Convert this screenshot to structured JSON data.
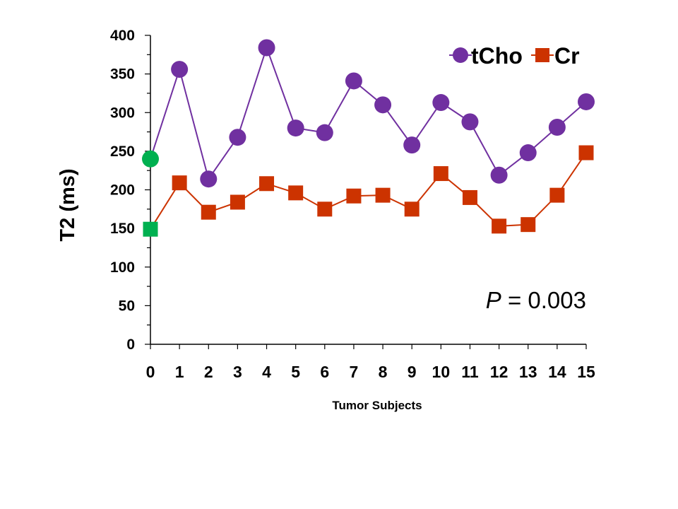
{
  "chart_data": {
    "type": "line",
    "title": "",
    "xlabel": "Tumor Subjects",
    "ylabel": "T2 (ms)",
    "x": [
      0,
      1,
      2,
      3,
      4,
      5,
      6,
      7,
      8,
      9,
      10,
      11,
      12,
      13,
      14,
      15
    ],
    "x_ticks": [
      "0",
      "1",
      "2",
      "3",
      "4",
      "5",
      "6",
      "7",
      "8",
      "9",
      "10",
      "11",
      "12",
      "13",
      "14",
      "15"
    ],
    "y_ticks": [
      "0",
      "50",
      "100",
      "150",
      "200",
      "250",
      "300",
      "350",
      "400"
    ],
    "xlim": [
      0,
      15
    ],
    "ylim": [
      0,
      400
    ],
    "grid": false,
    "legend_position": "top-right",
    "series": [
      {
        "name": "tCho",
        "marker": "circle",
        "color": "#7030A0",
        "highlight_color": "#00B050",
        "values": [
          240,
          356,
          214,
          268,
          384,
          280,
          274,
          341,
          310,
          258,
          313,
          288,
          219,
          248,
          281,
          314
        ]
      },
      {
        "name": "Cr",
        "marker": "square",
        "color": "#CC3300",
        "highlight_color": "#00B050",
        "values": [
          149,
          209,
          171,
          184,
          208,
          196,
          175,
          192,
          193,
          175,
          221,
          190,
          153,
          155,
          193,
          248
        ]
      }
    ],
    "annotation": {
      "label_italic": "P",
      "label_rest": " = 0.003"
    }
  }
}
